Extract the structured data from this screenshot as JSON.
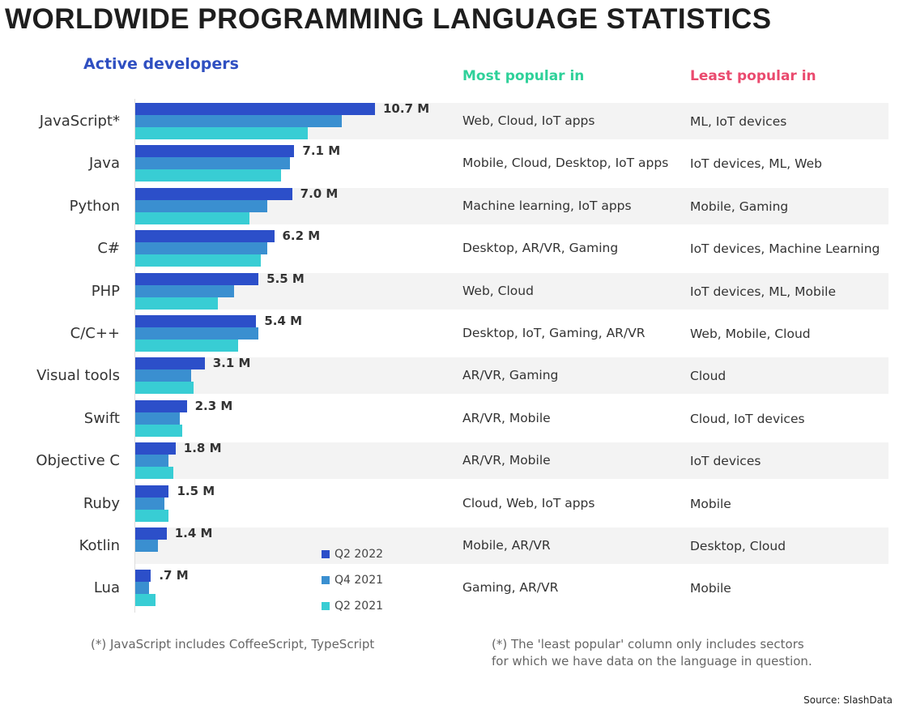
{
  "title": "WORLDWIDE PROGRAMMING LANGUAGE STATISTICS",
  "headers": {
    "active": "Active developers",
    "most": "Most popular in",
    "least": "Least popular in"
  },
  "colors": {
    "q2_2022": "#2c4fc9",
    "q4_2021": "#3a8fd0",
    "q2_2021": "#38cdd4",
    "active": "#2f4fc1",
    "most": "#2fd19a",
    "least": "#ea4a6e"
  },
  "chart_data": {
    "type": "bar",
    "orientation": "horizontal",
    "categories": [
      "JavaScript*",
      "Java",
      "Python",
      "C#",
      "PHP",
      "C/C++",
      "Visual tools",
      "Swift",
      "Objective C",
      "Ruby",
      "Kotlin",
      "Lua"
    ],
    "series": [
      {
        "name": "Q2 2022",
        "values": [
          10.7,
          7.1,
          7.0,
          6.2,
          5.5,
          5.4,
          3.1,
          2.3,
          1.8,
          1.5,
          1.4,
          0.7
        ]
      },
      {
        "name": "Q4 2021",
        "values": [
          9.2,
          6.9,
          5.9,
          5.9,
          4.4,
          5.5,
          2.5,
          2.0,
          1.5,
          1.3,
          1.0,
          0.6
        ]
      },
      {
        "name": "Q2 2021",
        "values": [
          7.7,
          6.5,
          5.1,
          5.6,
          3.7,
          4.6,
          2.6,
          2.1,
          1.7,
          1.5,
          null,
          0.9
        ]
      }
    ],
    "data_labels": [
      "10.7 M",
      "7.1 M",
      "7.0 M",
      "6.2 M",
      "5.5 M",
      "5.4 M",
      "3.1 M",
      "2.3 M",
      "1.8 M",
      "1.5 M",
      "1.4 M",
      ".7 M"
    ],
    "unit": "M",
    "legend": "bottom-center",
    "grid": false
  },
  "most_popular": [
    "Web, Cloud, IoT apps",
    "Mobile, Cloud, Desktop, IoT apps",
    "Machine learning, IoT apps",
    "Desktop, AR/VR, Gaming",
    "Web, Cloud",
    "Desktop, IoT, Gaming, AR/VR",
    "AR/VR, Gaming",
    "AR/VR, Mobile",
    "AR/VR, Mobile",
    "Cloud, Web, IoT apps",
    "Mobile, AR/VR",
    "Gaming, AR/VR"
  ],
  "least_popular": [
    "ML, IoT devices",
    "IoT devices, ML, Web",
    "Mobile, Gaming",
    "IoT devices, Machine Learning",
    "IoT devices, ML, Mobile",
    "Web, Mobile, Cloud",
    "Cloud",
    "Cloud, IoT devices",
    "IoT devices",
    "Mobile",
    "Desktop, Cloud",
    "Mobile"
  ],
  "notes": {
    "left": "(*) JavaScript includes CoffeeScript, TypeScript",
    "right_1": "(*) The 'least popular' column only includes sectors",
    "right_2": "for which we have data on the language in question."
  },
  "source": "Source: SlashData"
}
